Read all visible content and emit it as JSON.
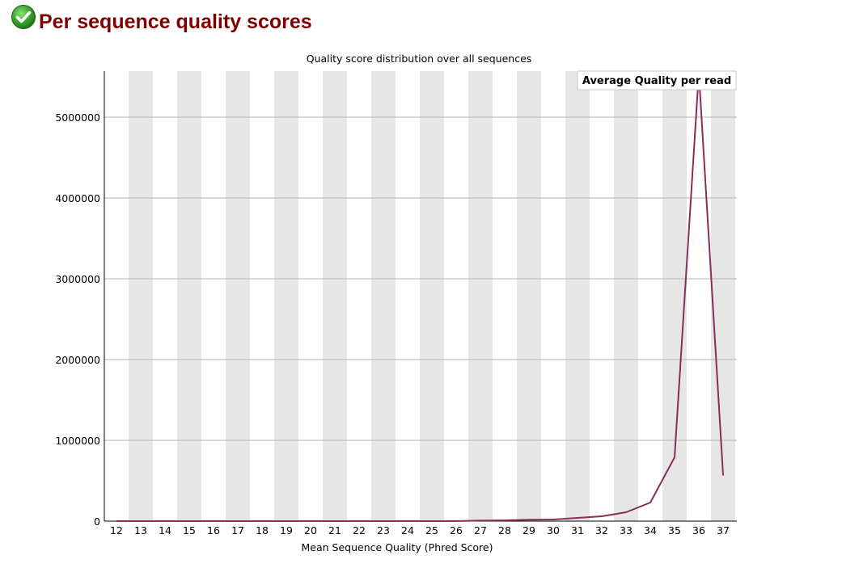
{
  "page": {
    "title": "Per sequence quality scores",
    "status_icon": "pass-check-icon",
    "status_color": "#2e9e1f"
  },
  "chart_data": {
    "type": "line",
    "title": "Quality score distribution over all sequences",
    "xlabel": "Mean Sequence Quality (Phred Score)",
    "ylabel": "",
    "categories": [
      "12",
      "13",
      "14",
      "15",
      "16",
      "17",
      "18",
      "19",
      "20",
      "21",
      "22",
      "23",
      "24",
      "25",
      "26",
      "27",
      "28",
      "29",
      "30",
      "31",
      "32",
      "33",
      "34",
      "35",
      "36",
      "37"
    ],
    "y_ticks": [
      "0",
      "1000000",
      "2000000",
      "3000000",
      "4000000",
      "5000000"
    ],
    "ylim": [
      0,
      5570000
    ],
    "grid": true,
    "stripes": "alternating-grey-columns",
    "legend_position": "top-right",
    "series": [
      {
        "name": "Average Quality per read",
        "color": "#8b2c5b",
        "values": [
          0,
          0,
          0,
          0,
          0,
          0,
          0,
          0,
          0,
          0,
          0,
          0,
          0,
          0,
          0,
          8000,
          10000,
          18000,
          20000,
          40000,
          60000,
          110000,
          230000,
          790000,
          5550000,
          570000
        ]
      }
    ]
  }
}
